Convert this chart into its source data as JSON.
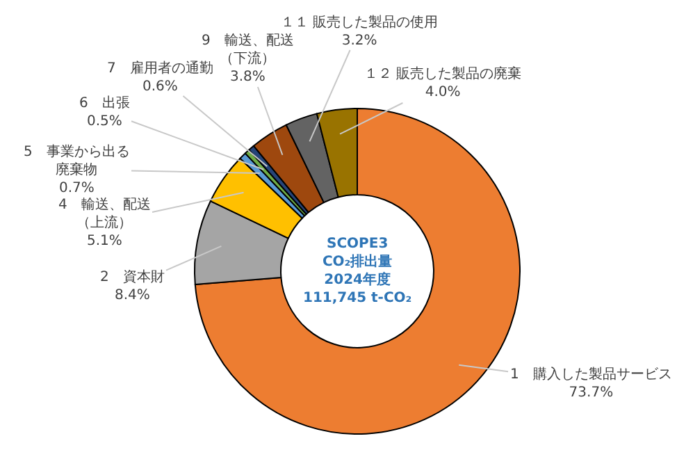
{
  "chart_data": {
    "type": "donut",
    "title": "SCOPE3\nCO₂排出量\n2024年度\n111,745 t-CO₂",
    "categories": [
      "1　購入した製品サービス",
      "2　資本財",
      "4　輸送、配送（上流）",
      "5　事業から出る廃棄物",
      "6　出張",
      "7　雇用者の通勤",
      "9　輸送、配送（下流）",
      "１１ 販売した製品の使用",
      "１２ 販売した製品の廃棄"
    ],
    "values": [
      73.7,
      8.4,
      5.1,
      0.7,
      0.5,
      0.6,
      3.8,
      3.2,
      4.0
    ],
    "value_labels": [
      "73.7%",
      "8.4%",
      "5.1%",
      "0.7%",
      "0.5%",
      "0.6%",
      "3.8%",
      "3.2%",
      "4.0%"
    ],
    "colors": [
      "#ed7d31",
      "#a5a5a5",
      "#ffc000",
      "#5b9bd5",
      "#70ad47",
      "#264478",
      "#9e480e",
      "#636363",
      "#997300"
    ],
    "legend": false
  }
}
